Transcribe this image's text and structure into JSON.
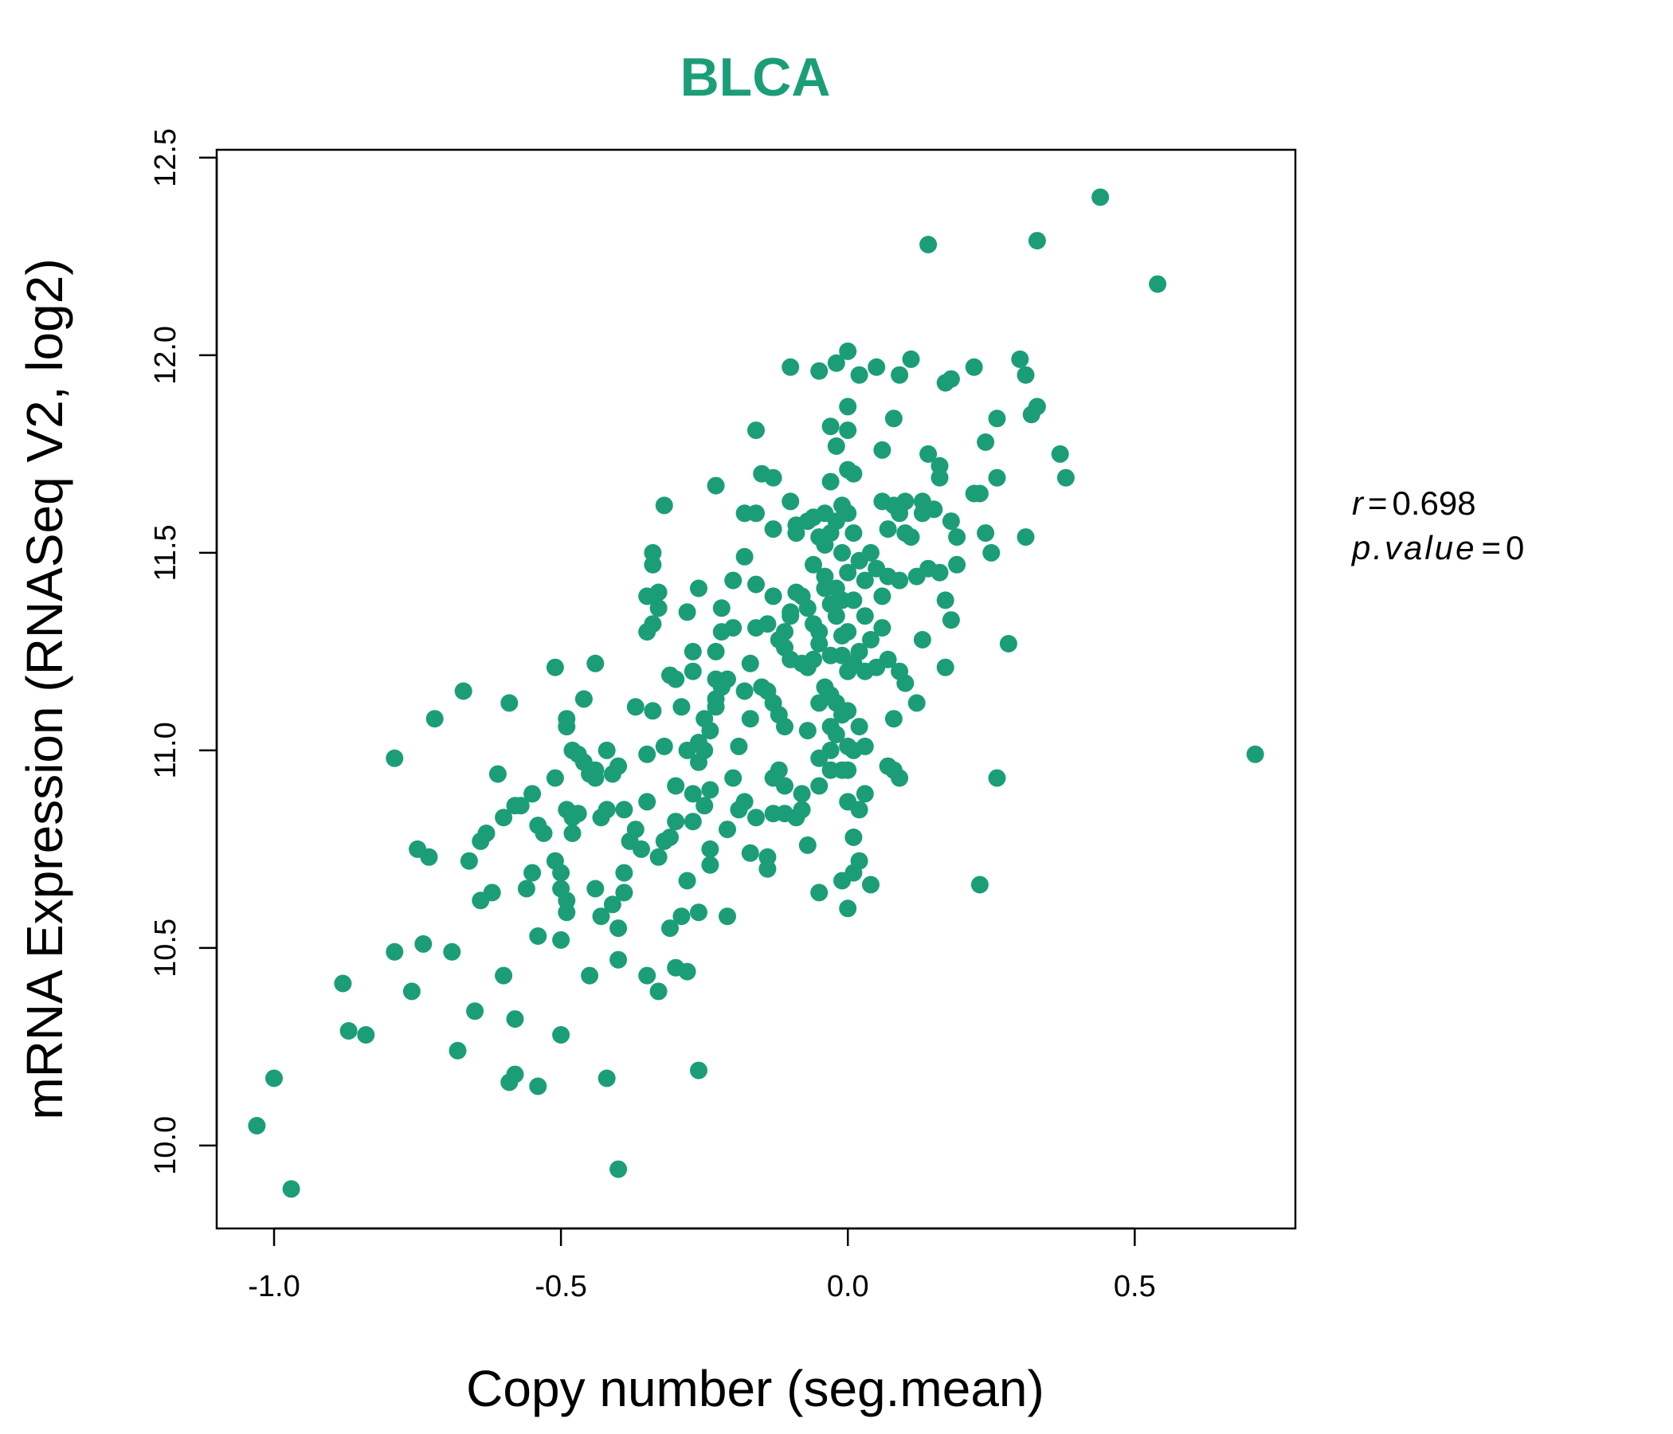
{
  "chart_data": {
    "type": "scatter",
    "title": "BLCA",
    "xlabel": "Copy number (seg.mean)",
    "ylabel": "mRNA Expression (RNASeq V2, log2)",
    "xlim": [
      -1.1,
      0.78
    ],
    "ylim": [
      9.79,
      12.52
    ],
    "xticks": [
      -1.0,
      -0.5,
      0.0,
      0.5
    ],
    "xtick_labels": [
      "-1.0",
      "-0.5",
      "0.0",
      "0.5"
    ],
    "yticks": [
      10.0,
      10.5,
      11.0,
      11.5,
      12.0,
      12.5
    ],
    "ytick_labels": [
      "10.0",
      "10.5",
      "11.0",
      "11.5",
      "12.0",
      "12.5"
    ],
    "point_color": "#1b9e77",
    "grid": false,
    "legend": "none",
    "annotations": {
      "r_label": "r",
      "r_value": "0.698",
      "p_label": "p.value",
      "p_value": "0"
    },
    "points": [
      [
        -1.03,
        10.05
      ],
      [
        -1.0,
        10.17
      ],
      [
        -0.97,
        9.89
      ],
      [
        -0.88,
        10.41
      ],
      [
        -0.87,
        10.29
      ],
      [
        -0.84,
        10.28
      ],
      [
        -0.79,
        10.49
      ],
      [
        -0.79,
        10.98
      ],
      [
        -0.76,
        10.39
      ],
      [
        -0.75,
        10.75
      ],
      [
        -0.74,
        10.51
      ],
      [
        -0.73,
        10.73
      ],
      [
        -0.72,
        11.08
      ],
      [
        -0.69,
        10.49
      ],
      [
        -0.68,
        10.24
      ],
      [
        -0.67,
        11.15
      ],
      [
        -0.66,
        10.72
      ],
      [
        -0.65,
        10.34
      ],
      [
        -0.64,
        10.77
      ],
      [
        -0.64,
        10.62
      ],
      [
        -0.63,
        10.79
      ],
      [
        -0.62,
        10.64
      ],
      [
        -0.61,
        10.94
      ],
      [
        -0.6,
        10.43
      ],
      [
        -0.6,
        10.83
      ],
      [
        -0.59,
        10.16
      ],
      [
        -0.59,
        11.12
      ],
      [
        -0.58,
        10.18
      ],
      [
        -0.58,
        10.86
      ],
      [
        -0.58,
        10.32
      ],
      [
        -0.57,
        10.86
      ],
      [
        -0.56,
        10.65
      ],
      [
        -0.55,
        10.89
      ],
      [
        -0.55,
        10.69
      ],
      [
        -0.54,
        10.15
      ],
      [
        -0.54,
        10.53
      ],
      [
        -0.54,
        10.81
      ],
      [
        -0.53,
        10.79
      ],
      [
        -0.51,
        10.72
      ],
      [
        -0.51,
        10.93
      ],
      [
        -0.51,
        11.21
      ],
      [
        -0.5,
        10.65
      ],
      [
        -0.5,
        10.69
      ],
      [
        -0.5,
        10.28
      ],
      [
        -0.5,
        10.52
      ],
      [
        -0.49,
        10.59
      ],
      [
        -0.49,
        10.62
      ],
      [
        -0.49,
        10.85
      ],
      [
        -0.49,
        11.06
      ],
      [
        -0.49,
        11.08
      ],
      [
        -0.48,
        11.0
      ],
      [
        -0.48,
        10.83
      ],
      [
        -0.48,
        10.79
      ],
      [
        -0.47,
        10.84
      ],
      [
        -0.47,
        10.99
      ],
      [
        -0.46,
        11.13
      ],
      [
        -0.46,
        10.97
      ],
      [
        -0.45,
        10.94
      ],
      [
        -0.45,
        10.43
      ],
      [
        -0.44,
        10.93
      ],
      [
        -0.44,
        10.95
      ],
      [
        -0.44,
        10.65
      ],
      [
        -0.44,
        11.22
      ],
      [
        -0.43,
        10.83
      ],
      [
        -0.43,
        10.58
      ],
      [
        -0.42,
        10.17
      ],
      [
        -0.42,
        10.85
      ],
      [
        -0.42,
        11.0
      ],
      [
        -0.41,
        10.94
      ],
      [
        -0.41,
        10.61
      ],
      [
        -0.4,
        10.55
      ],
      [
        -0.4,
        9.94
      ],
      [
        -0.4,
        10.47
      ],
      [
        -0.4,
        10.96
      ],
      [
        -0.39,
        10.64
      ],
      [
        -0.39,
        10.69
      ],
      [
        -0.39,
        10.85
      ],
      [
        -0.38,
        10.77
      ],
      [
        -0.37,
        11.11
      ],
      [
        -0.37,
        10.8
      ],
      [
        -0.36,
        10.75
      ],
      [
        -0.35,
        10.43
      ],
      [
        -0.35,
        10.87
      ],
      [
        -0.35,
        10.99
      ],
      [
        -0.35,
        11.3
      ],
      [
        -0.35,
        11.39
      ],
      [
        -0.34,
        11.47
      ],
      [
        -0.34,
        11.5
      ],
      [
        -0.34,
        11.32
      ],
      [
        -0.34,
        11.1
      ],
      [
        -0.33,
        11.36
      ],
      [
        -0.33,
        11.4
      ],
      [
        -0.33,
        10.73
      ],
      [
        -0.33,
        10.39
      ],
      [
        -0.32,
        10.77
      ],
      [
        -0.32,
        11.01
      ],
      [
        -0.32,
        11.62
      ],
      [
        -0.31,
        11.19
      ],
      [
        -0.31,
        10.55
      ],
      [
        -0.31,
        10.78
      ],
      [
        -0.3,
        10.82
      ],
      [
        -0.3,
        10.45
      ],
      [
        -0.3,
        11.18
      ],
      [
        -0.3,
        10.91
      ],
      [
        -0.29,
        10.58
      ],
      [
        -0.29,
        11.11
      ],
      [
        -0.28,
        11.35
      ],
      [
        -0.28,
        11.0
      ],
      [
        -0.28,
        10.44
      ],
      [
        -0.28,
        10.67
      ],
      [
        -0.27,
        11.2
      ],
      [
        -0.27,
        11.25
      ],
      [
        -0.27,
        10.82
      ],
      [
        -0.27,
        10.89
      ],
      [
        -0.26,
        11.02
      ],
      [
        -0.26,
        10.59
      ],
      [
        -0.26,
        10.97
      ],
      [
        -0.26,
        10.19
      ],
      [
        -0.26,
        11.41
      ],
      [
        -0.25,
        10.86
      ],
      [
        -0.25,
        11.08
      ],
      [
        -0.25,
        11.0
      ],
      [
        -0.24,
        11.05
      ],
      [
        -0.24,
        10.75
      ],
      [
        -0.24,
        10.71
      ],
      [
        -0.24,
        10.9
      ],
      [
        -0.23,
        11.11
      ],
      [
        -0.23,
        11.13
      ],
      [
        -0.23,
        11.18
      ],
      [
        -0.23,
        11.25
      ],
      [
        -0.23,
        11.67
      ],
      [
        -0.22,
        11.36
      ],
      [
        -0.22,
        11.3
      ],
      [
        -0.22,
        11.16
      ],
      [
        -0.21,
        10.58
      ],
      [
        -0.21,
        10.8
      ],
      [
        -0.21,
        11.18
      ],
      [
        -0.2,
        10.93
      ],
      [
        -0.2,
        11.31
      ],
      [
        -0.2,
        11.43
      ],
      [
        -0.19,
        10.85
      ],
      [
        -0.19,
        11.01
      ],
      [
        -0.18,
        11.49
      ],
      [
        -0.18,
        11.15
      ],
      [
        -0.18,
        11.6
      ],
      [
        -0.18,
        10.87
      ],
      [
        -0.17,
        11.08
      ],
      [
        -0.17,
        11.22
      ],
      [
        -0.17,
        10.74
      ],
      [
        -0.16,
        11.31
      ],
      [
        -0.16,
        11.42
      ],
      [
        -0.16,
        11.6
      ],
      [
        -0.16,
        11.81
      ],
      [
        -0.16,
        10.83
      ],
      [
        -0.15,
        11.7
      ],
      [
        -0.15,
        11.16
      ],
      [
        -0.14,
        11.15
      ],
      [
        -0.14,
        11.32
      ],
      [
        -0.14,
        10.73
      ],
      [
        -0.14,
        10.7
      ],
      [
        -0.13,
        11.69
      ],
      [
        -0.13,
        11.39
      ],
      [
        -0.13,
        11.56
      ],
      [
        -0.13,
        11.12
      ],
      [
        -0.13,
        10.84
      ],
      [
        -0.13,
        10.93
      ],
      [
        -0.12,
        11.09
      ],
      [
        -0.12,
        11.28
      ],
      [
        -0.12,
        10.95
      ],
      [
        -0.11,
        11.3
      ],
      [
        -0.11,
        11.06
      ],
      [
        -0.11,
        10.84
      ],
      [
        -0.11,
        11.26
      ],
      [
        -0.11,
        10.91
      ],
      [
        -0.1,
        11.97
      ],
      [
        -0.1,
        11.63
      ],
      [
        -0.1,
        11.35
      ],
      [
        -0.1,
        11.34
      ],
      [
        -0.1,
        11.23
      ],
      [
        -0.09,
        11.4
      ],
      [
        -0.09,
        11.55
      ],
      [
        -0.09,
        11.57
      ],
      [
        -0.09,
        10.83
      ],
      [
        -0.08,
        11.22
      ],
      [
        -0.08,
        11.39
      ],
      [
        -0.08,
        10.89
      ],
      [
        -0.08,
        10.85
      ],
      [
        -0.07,
        11.36
      ],
      [
        -0.07,
        11.58
      ],
      [
        -0.07,
        11.21
      ],
      [
        -0.07,
        11.05
      ],
      [
        -0.07,
        10.76
      ],
      [
        -0.06,
        11.32
      ],
      [
        -0.06,
        11.47
      ],
      [
        -0.06,
        11.23
      ],
      [
        -0.06,
        11.59
      ],
      [
        -0.05,
        10.64
      ],
      [
        -0.05,
        10.91
      ],
      [
        -0.05,
        11.12
      ],
      [
        -0.05,
        11.54
      ],
      [
        -0.05,
        11.3
      ],
      [
        -0.05,
        11.96
      ],
      [
        -0.05,
        11.27
      ],
      [
        -0.05,
        10.98
      ],
      [
        -0.04,
        11.41
      ],
      [
        -0.04,
        11.44
      ],
      [
        -0.04,
        11.16
      ],
      [
        -0.04,
        11.52
      ],
      [
        -0.04,
        11.6
      ],
      [
        -0.03,
        11.82
      ],
      [
        -0.03,
        11.68
      ],
      [
        -0.03,
        11.55
      ],
      [
        -0.03,
        11.37
      ],
      [
        -0.03,
        11.24
      ],
      [
        -0.03,
        11.06
      ],
      [
        -0.03,
        11.0
      ],
      [
        -0.03,
        10.95
      ],
      [
        -0.03,
        11.14
      ],
      [
        -0.02,
        11.41
      ],
      [
        -0.02,
        11.34
      ],
      [
        -0.02,
        11.58
      ],
      [
        -0.02,
        11.77
      ],
      [
        -0.02,
        11.98
      ],
      [
        -0.02,
        11.12
      ],
      [
        -0.02,
        11.04
      ],
      [
        -0.01,
        11.29
      ],
      [
        -0.01,
        11.5
      ],
      [
        -0.01,
        11.62
      ],
      [
        -0.01,
        11.38
      ],
      [
        -0.01,
        11.24
      ],
      [
        -0.01,
        11.09
      ],
      [
        -0.01,
        10.95
      ],
      [
        -0.01,
        10.67
      ],
      [
        -0.0,
        11.87
      ],
      [
        -0.0,
        11.81
      ],
      [
        -0.0,
        11.71
      ],
      [
        0.0,
        11.6
      ],
      [
        0.0,
        11.45
      ],
      [
        0.0,
        11.3
      ],
      [
        0.0,
        11.2
      ],
      [
        0.0,
        11.1
      ],
      [
        0.0,
        11.01
      ],
      [
        0.0,
        10.95
      ],
      [
        0.0,
        10.87
      ],
      [
        0.0,
        10.6
      ],
      [
        0.0,
        12.01
      ],
      [
        0.01,
        11.7
      ],
      [
        0.01,
        11.55
      ],
      [
        0.01,
        11.38
      ],
      [
        0.01,
        11.22
      ],
      [
        0.01,
        11.0
      ],
      [
        0.01,
        10.78
      ],
      [
        0.01,
        10.69
      ],
      [
        0.02,
        11.95
      ],
      [
        0.02,
        11.48
      ],
      [
        0.02,
        11.25
      ],
      [
        0.02,
        11.06
      ],
      [
        0.02,
        10.85
      ],
      [
        0.02,
        10.72
      ],
      [
        0.03,
        11.43
      ],
      [
        0.03,
        11.34
      ],
      [
        0.03,
        11.2
      ],
      [
        0.03,
        11.01
      ],
      [
        0.03,
        10.89
      ],
      [
        0.04,
        11.5
      ],
      [
        0.04,
        11.28
      ],
      [
        0.04,
        10.66
      ],
      [
        0.05,
        11.97
      ],
      [
        0.05,
        11.46
      ],
      [
        0.05,
        11.21
      ],
      [
        0.06,
        11.63
      ],
      [
        0.06,
        11.39
      ],
      [
        0.06,
        11.31
      ],
      [
        0.06,
        11.76
      ],
      [
        0.07,
        11.56
      ],
      [
        0.07,
        11.44
      ],
      [
        0.07,
        11.23
      ],
      [
        0.07,
        10.96
      ],
      [
        0.08,
        11.62
      ],
      [
        0.08,
        11.08
      ],
      [
        0.08,
        10.95
      ],
      [
        0.08,
        11.84
      ],
      [
        0.09,
        11.6
      ],
      [
        0.09,
        11.43
      ],
      [
        0.09,
        11.2
      ],
      [
        0.09,
        11.95
      ],
      [
        0.09,
        10.93
      ],
      [
        0.1,
        11.63
      ],
      [
        0.1,
        11.55
      ],
      [
        0.1,
        11.17
      ],
      [
        0.11,
        11.54
      ],
      [
        0.11,
        11.99
      ],
      [
        0.12,
        11.12
      ],
      [
        0.12,
        11.44
      ],
      [
        0.13,
        11.63
      ],
      [
        0.13,
        11.28
      ],
      [
        0.13,
        11.6
      ],
      [
        0.14,
        11.46
      ],
      [
        0.14,
        11.75
      ],
      [
        0.14,
        12.28
      ],
      [
        0.15,
        11.61
      ],
      [
        0.16,
        11.69
      ],
      [
        0.16,
        11.72
      ],
      [
        0.16,
        11.45
      ],
      [
        0.17,
        11.38
      ],
      [
        0.17,
        11.21
      ],
      [
        0.17,
        11.93
      ],
      [
        0.18,
        11.58
      ],
      [
        0.18,
        11.33
      ],
      [
        0.18,
        11.94
      ],
      [
        0.19,
        11.54
      ],
      [
        0.19,
        11.47
      ],
      [
        0.22,
        11.97
      ],
      [
        0.22,
        11.65
      ],
      [
        0.23,
        10.66
      ],
      [
        0.23,
        11.65
      ],
      [
        0.24,
        11.55
      ],
      [
        0.24,
        11.78
      ],
      [
        0.25,
        11.5
      ],
      [
        0.26,
        11.69
      ],
      [
        0.26,
        10.93
      ],
      [
        0.26,
        11.84
      ],
      [
        0.28,
        11.27
      ],
      [
        0.3,
        11.99
      ],
      [
        0.31,
        11.95
      ],
      [
        0.31,
        11.54
      ],
      [
        0.32,
        11.85
      ],
      [
        0.33,
        11.87
      ],
      [
        0.33,
        12.29
      ],
      [
        0.37,
        11.75
      ],
      [
        0.38,
        11.69
      ],
      [
        0.44,
        12.4
      ],
      [
        0.54,
        12.18
      ],
      [
        0.71,
        10.99
      ]
    ]
  }
}
